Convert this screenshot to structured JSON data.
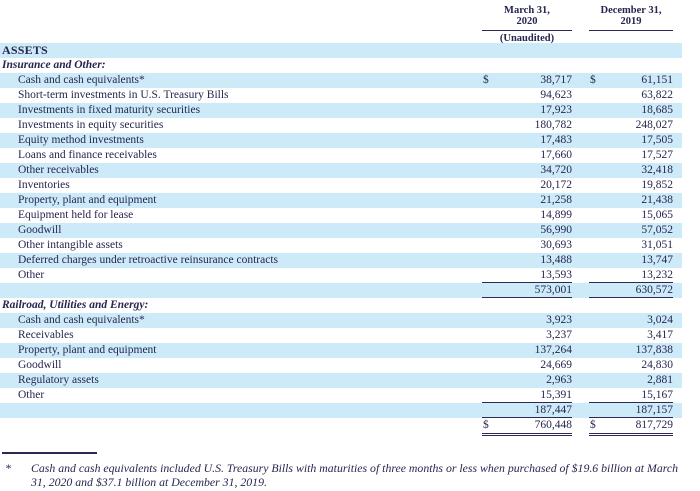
{
  "colors": {
    "row_highlight": "#cdeaf9",
    "ink": "#26264f",
    "rule_line": "#2a2a55"
  },
  "header": {
    "col1_title": "March 31,\n2020",
    "col1_subtitle": "(Unaudited)",
    "col2_title": "December 31,\n2019"
  },
  "table": {
    "rows": [
      {
        "label": "ASSETS",
        "style": "caps",
        "bg": "blue"
      },
      {
        "label": "Insurance and Other:",
        "style": "section",
        "bg": "white"
      },
      {
        "label": "Cash and cash equivalents*",
        "style": "item",
        "bg": "blue",
        "d1": "$",
        "v1": "38,717",
        "d2": "$",
        "v2": "61,151"
      },
      {
        "label": "Short-term investments in U.S. Treasury Bills",
        "style": "item",
        "bg": "white",
        "v1": "94,623",
        "v2": "63,822"
      },
      {
        "label": "Investments in fixed maturity securities",
        "style": "item",
        "bg": "blue",
        "v1": "17,923",
        "v2": "18,685"
      },
      {
        "label": "Investments in equity securities",
        "style": "item",
        "bg": "white",
        "v1": "180,782",
        "v2": "248,027"
      },
      {
        "label": "Equity method investments",
        "style": "item",
        "bg": "blue",
        "v1": "17,483",
        "v2": "17,505"
      },
      {
        "label": "Loans and finance receivables",
        "style": "item",
        "bg": "white",
        "v1": "17,660",
        "v2": "17,527"
      },
      {
        "label": "Other receivables",
        "style": "item",
        "bg": "blue",
        "v1": "34,720",
        "v2": "32,418"
      },
      {
        "label": "Inventories",
        "style": "item",
        "bg": "white",
        "v1": "20,172",
        "v2": "19,852"
      },
      {
        "label": "Property, plant and equipment",
        "style": "item",
        "bg": "blue",
        "v1": "21,258",
        "v2": "21,438"
      },
      {
        "label": "Equipment held for lease",
        "style": "item",
        "bg": "white",
        "v1": "14,899",
        "v2": "15,065"
      },
      {
        "label": "Goodwill",
        "style": "item",
        "bg": "blue",
        "v1": "56,990",
        "v2": "57,052"
      },
      {
        "label": "Other intangible assets",
        "style": "item",
        "bg": "white",
        "v1": "30,693",
        "v2": "31,051"
      },
      {
        "label": "Deferred charges under retroactive reinsurance contracts",
        "style": "item",
        "bg": "blue",
        "v1": "13,488",
        "v2": "13,747"
      },
      {
        "label": "Other",
        "style": "item",
        "bg": "white",
        "v1": "13,593",
        "v2": "13,232",
        "rule": "under"
      },
      {
        "label": "",
        "style": "subtotal",
        "bg": "blue",
        "v1": "573,001",
        "v2": "630,572",
        "rule": "under"
      },
      {
        "label": "Railroad, Utilities and Energy:",
        "style": "section",
        "bg": "white"
      },
      {
        "label": "Cash and cash equivalents*",
        "style": "item",
        "bg": "blue",
        "v1": "3,923",
        "v2": "3,024"
      },
      {
        "label": "Receivables",
        "style": "item",
        "bg": "white",
        "v1": "3,237",
        "v2": "3,417"
      },
      {
        "label": "Property, plant and equipment",
        "style": "item",
        "bg": "blue",
        "v1": "137,264",
        "v2": "137,838"
      },
      {
        "label": "Goodwill",
        "style": "item",
        "bg": "white",
        "v1": "24,669",
        "v2": "24,830"
      },
      {
        "label": "Regulatory assets",
        "style": "item",
        "bg": "blue",
        "v1": "2,963",
        "v2": "2,881"
      },
      {
        "label": "Other",
        "style": "item",
        "bg": "white",
        "v1": "15,391",
        "v2": "15,167",
        "rule": "under"
      },
      {
        "label": "",
        "style": "subtotal",
        "bg": "blue",
        "v1": "187,447",
        "v2": "187,157",
        "rule": "under"
      },
      {
        "label": "",
        "style": "total",
        "bg": "white",
        "d1": "$",
        "v1": "760,448",
        "d2": "$",
        "v2": "817,729",
        "rule": "double"
      }
    ]
  },
  "footnote": {
    "marker": "*",
    "text": "Cash and cash equivalents included U.S. Treasury Bills with maturities of three months or less when purchased of $19.6 billion at March 31, 2020 and $37.1 billion at December 31, 2019."
  }
}
